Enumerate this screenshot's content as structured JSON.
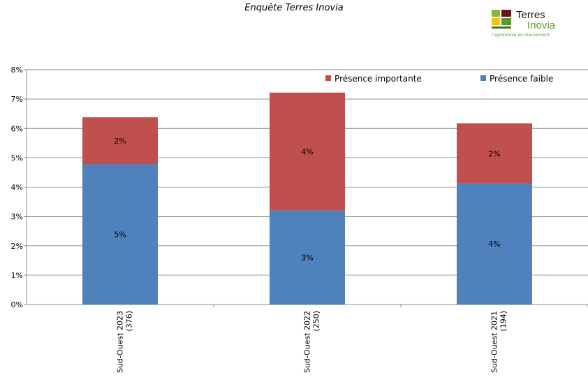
{
  "title": "Enquête Terres Inovia",
  "logo": {
    "name_line1": "Terres",
    "name_line2": "Inovia",
    "tagline": "l'agronomie en mouvement"
  },
  "colors": {
    "presence_faible": "#4f81bd",
    "presence_importante": "#c0504d"
  },
  "chart_data": {
    "type": "bar",
    "stacked": true,
    "title": "Enquête Terres Inovia",
    "categories": [
      [
        "Sud-Ouest 2023",
        "(376)"
      ],
      [
        "Sud-Ouest 2022",
        "(250)"
      ],
      [
        "Sud-Ouest 2021",
        "(194)"
      ]
    ],
    "series": [
      {
        "name": "Présence faible",
        "values": [
          4.78,
          3.2,
          4.12
        ],
        "labels": [
          "5%",
          "3%",
          "4%"
        ]
      },
      {
        "name": "Présence importante",
        "values": [
          1.6,
          4.02,
          2.05
        ],
        "labels": [
          "2%",
          "4%",
          "2%"
        ]
      }
    ],
    "ylim": [
      0,
      8
    ],
    "yticks": [
      "0%",
      "1%",
      "2%",
      "3%",
      "4%",
      "5%",
      "6%",
      "7%",
      "8%"
    ],
    "grid": true,
    "legend": [
      "Présence importante",
      "Présence faible"
    ],
    "legend_position": "top-right"
  }
}
